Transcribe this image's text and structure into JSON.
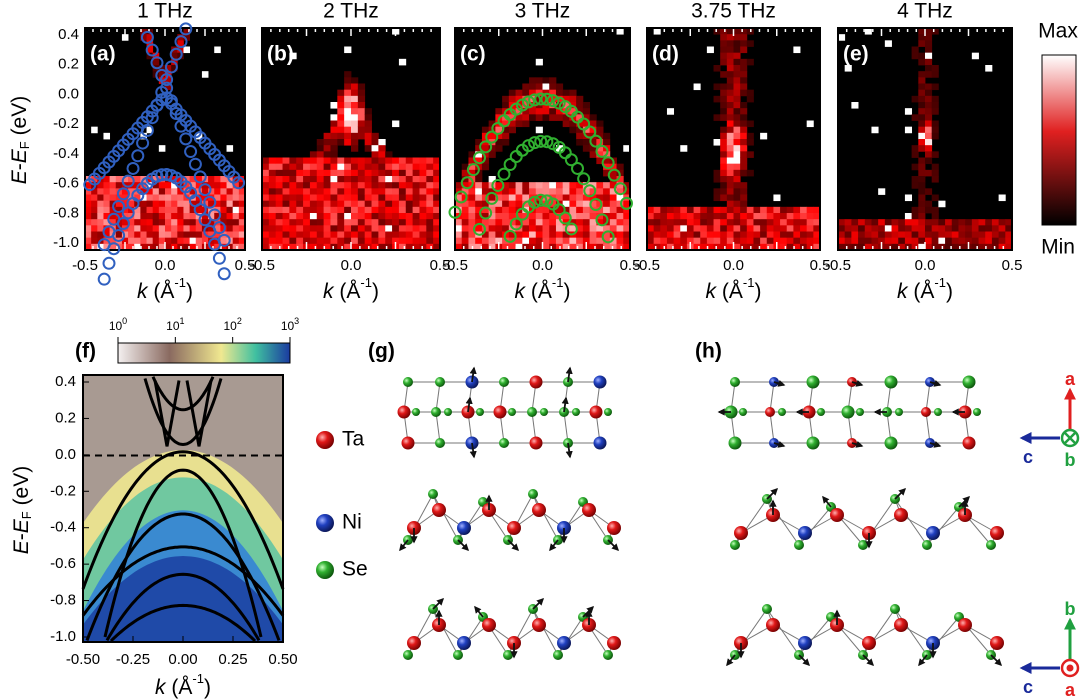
{
  "top_row": {
    "panels": [
      {
        "title": "1 THz",
        "letter": "(a)"
      },
      {
        "title": "2 THz",
        "letter": "(b)"
      },
      {
        "title": "3 THz",
        "letter": "(c)"
      },
      {
        "title": "3.75 THz",
        "letter": "(d)"
      },
      {
        "title": "4 THz",
        "letter": "(e)"
      }
    ],
    "y_label": {
      "e1": "E",
      "dash": "-",
      "e2": "E",
      "sub": "F",
      "unit": " (eV)"
    },
    "y_ticks": [
      "0.4",
      "0.2",
      "0.0",
      "-0.2",
      "-0.4",
      "-0.6",
      "-0.8",
      "-1.0"
    ],
    "x_ticks": [
      "-0.5",
      "0.0",
      "0.5"
    ],
    "x_label": {
      "k": "k",
      "open": " (Å",
      "sup": "-1",
      "close": ")"
    },
    "colorbar": {
      "max": "Max",
      "min": "Min"
    }
  },
  "panel_f": {
    "letter": "(f)",
    "colorbar_ticks": [
      {
        "base": "10",
        "exp": "0"
      },
      {
        "base": "10",
        "exp": "1"
      },
      {
        "base": "10",
        "exp": "2"
      },
      {
        "base": "10",
        "exp": "3"
      }
    ],
    "y_ticks": [
      "0.4",
      "0.2",
      "0.0",
      "-0.2",
      "-0.4",
      "-0.6",
      "-0.8",
      "-1.0"
    ],
    "x_ticks": [
      "-0.50",
      "-0.25",
      "0.00",
      "0.25",
      "0.50"
    ],
    "y_label": {
      "e1": "E",
      "dash": "-",
      "e2": "E",
      "sub": "F",
      "unit": " (eV)"
    },
    "x_label": {
      "k": "k",
      "open": " (Å",
      "sup": "-1",
      "close": ")"
    }
  },
  "legend": [
    {
      "label": "Ta"
    },
    {
      "label": "Ni"
    },
    {
      "label": "Se"
    }
  ],
  "panel_g": {
    "letter": "(g)"
  },
  "panel_h": {
    "letter": "(h)"
  },
  "axes_top": {
    "up": "a",
    "left": "c",
    "out": "b"
  },
  "axes_bottom": {
    "up": "b",
    "left": "c",
    "out": "a"
  }
}
